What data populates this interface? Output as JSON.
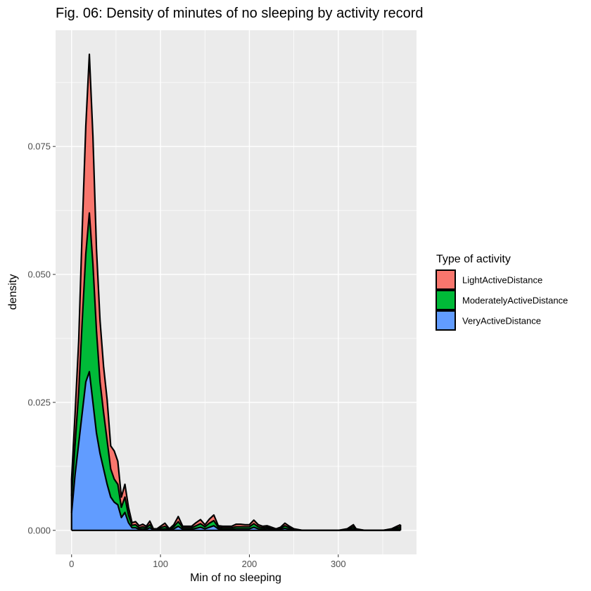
{
  "title": "Fig. 06: Density of minutes of no sleeping by activity record",
  "colors": {
    "panel_bg": "#EBEBEB",
    "grid_major": "#FFFFFF",
    "tick_color": "#333333",
    "light": "#F8766D",
    "moderate": "#00BA38",
    "very": "#619CFF",
    "outline": "#000000"
  },
  "chart_data": {
    "type": "area",
    "stacked": true,
    "title": "Fig. 06: Density of minutes of no sleeping by activity record",
    "xlabel": "Min of no sleeping",
    "ylabel": "density",
    "xlim": [
      -18,
      388
    ],
    "ylim": [
      -0.0047,
      0.0977
    ],
    "xticks": [
      0,
      100,
      200,
      300
    ],
    "xtick_labels": [
      "0",
      "100",
      "200",
      "300"
    ],
    "yticks": [
      0.0,
      0.025,
      0.05,
      0.075
    ],
    "ytick_labels": [
      "0.000",
      "0.025",
      "0.050",
      "0.075"
    ],
    "grid": true,
    "legend": {
      "title": "Type of activity",
      "position": "right",
      "entries": [
        "LightActiveDistance",
        "ModeratelyActiveDistance",
        "VeryActiveDistance"
      ]
    },
    "x": [
      0,
      4,
      8,
      12,
      16,
      20,
      24,
      28,
      32,
      36,
      40,
      44,
      48,
      52,
      56,
      60,
      64,
      68,
      72,
      76,
      80,
      84,
      88,
      92,
      96,
      100,
      105,
      110,
      115,
      120,
      125,
      130,
      135,
      140,
      145,
      150,
      155,
      160,
      165,
      170,
      175,
      180,
      185,
      190,
      195,
      200,
      205,
      210,
      215,
      220,
      225,
      230,
      235,
      240,
      245,
      250,
      260,
      270,
      280,
      290,
      300,
      310,
      317,
      320,
      330,
      340,
      350,
      360,
      366,
      370
    ],
    "series": [
      {
        "name": "VeryActiveDistance",
        "values": [
          0.0034,
          0.011,
          0.017,
          0.023,
          0.029,
          0.031,
          0.025,
          0.019,
          0.015,
          0.012,
          0.009,
          0.0065,
          0.0055,
          0.005,
          0.0025,
          0.0035,
          0.0015,
          0.0005,
          0.0005,
          0.0002,
          0.0003,
          0.0002,
          0.0005,
          0.0001,
          0.0001,
          0.0002,
          0.0003,
          0.0001,
          0.0003,
          0.0008,
          0.0002,
          0.0002,
          0.0002,
          0.0004,
          0.0006,
          0.0003,
          0.0006,
          0.0009,
          0.0003,
          0.0002,
          0.0002,
          0.0002,
          0.0003,
          0.0003,
          0.0003,
          0.0003,
          0.0006,
          0.0003,
          0.0002,
          0.0003,
          0.0002,
          0.0001,
          0.0002,
          0.0004,
          0.0002,
          0.0001,
          0.0,
          0.0,
          0.0,
          0.0,
          0.0,
          0.0001,
          0.0003,
          0.0001,
          0.0,
          0.0,
          0.0,
          0.0001,
          0.0002,
          0.0003
        ]
      },
      {
        "name": "ModeratelyActiveDistance",
        "values": [
          0.0033,
          0.006,
          0.01,
          0.018,
          0.025,
          0.031,
          0.027,
          0.02,
          0.014,
          0.011,
          0.0085,
          0.0055,
          0.0045,
          0.004,
          0.002,
          0.003,
          0.0015,
          0.0005,
          0.0006,
          0.0003,
          0.0004,
          0.0003,
          0.0006,
          0.0001,
          0.0001,
          0.0003,
          0.0005,
          0.0001,
          0.0004,
          0.0009,
          0.0003,
          0.0003,
          0.0003,
          0.0005,
          0.0007,
          0.0004,
          0.0008,
          0.001,
          0.0003,
          0.0003,
          0.0003,
          0.0003,
          0.0004,
          0.0004,
          0.0004,
          0.0004,
          0.0007,
          0.0004,
          0.0003,
          0.0003,
          0.0002,
          0.0001,
          0.0002,
          0.0005,
          0.0003,
          0.0001,
          0.0,
          0.0,
          0.0,
          0.0,
          0.0,
          0.0001,
          0.0004,
          0.0001,
          0.0,
          0.0,
          0.0,
          0.0001,
          0.0003,
          0.0004
        ]
      },
      {
        "name": "LightActiveDistance",
        "values": [
          0.0033,
          0.006,
          0.01,
          0.018,
          0.025,
          0.031,
          0.025,
          0.016,
          0.012,
          0.009,
          0.008,
          0.0045,
          0.0055,
          0.0045,
          0.002,
          0.0025,
          0.0015,
          0.0005,
          0.0006,
          0.0004,
          0.0005,
          0.0003,
          0.0007,
          0.0001,
          0.0001,
          0.0003,
          0.0006,
          0.0001,
          0.0004,
          0.001,
          0.0003,
          0.0003,
          0.0003,
          0.0006,
          0.0008,
          0.0004,
          0.0008,
          0.0011,
          0.0003,
          0.0003,
          0.0003,
          0.0003,
          0.0005,
          0.0005,
          0.0004,
          0.0004,
          0.0007,
          0.0004,
          0.0003,
          0.0003,
          0.0002,
          0.0001,
          0.0002,
          0.0005,
          0.0003,
          0.0001,
          0.0,
          0.0,
          0.0,
          0.0,
          0.0,
          0.0001,
          0.0004,
          0.0001,
          0.0,
          0.0,
          0.0,
          0.0001,
          0.0003,
          0.0004
        ]
      }
    ]
  }
}
